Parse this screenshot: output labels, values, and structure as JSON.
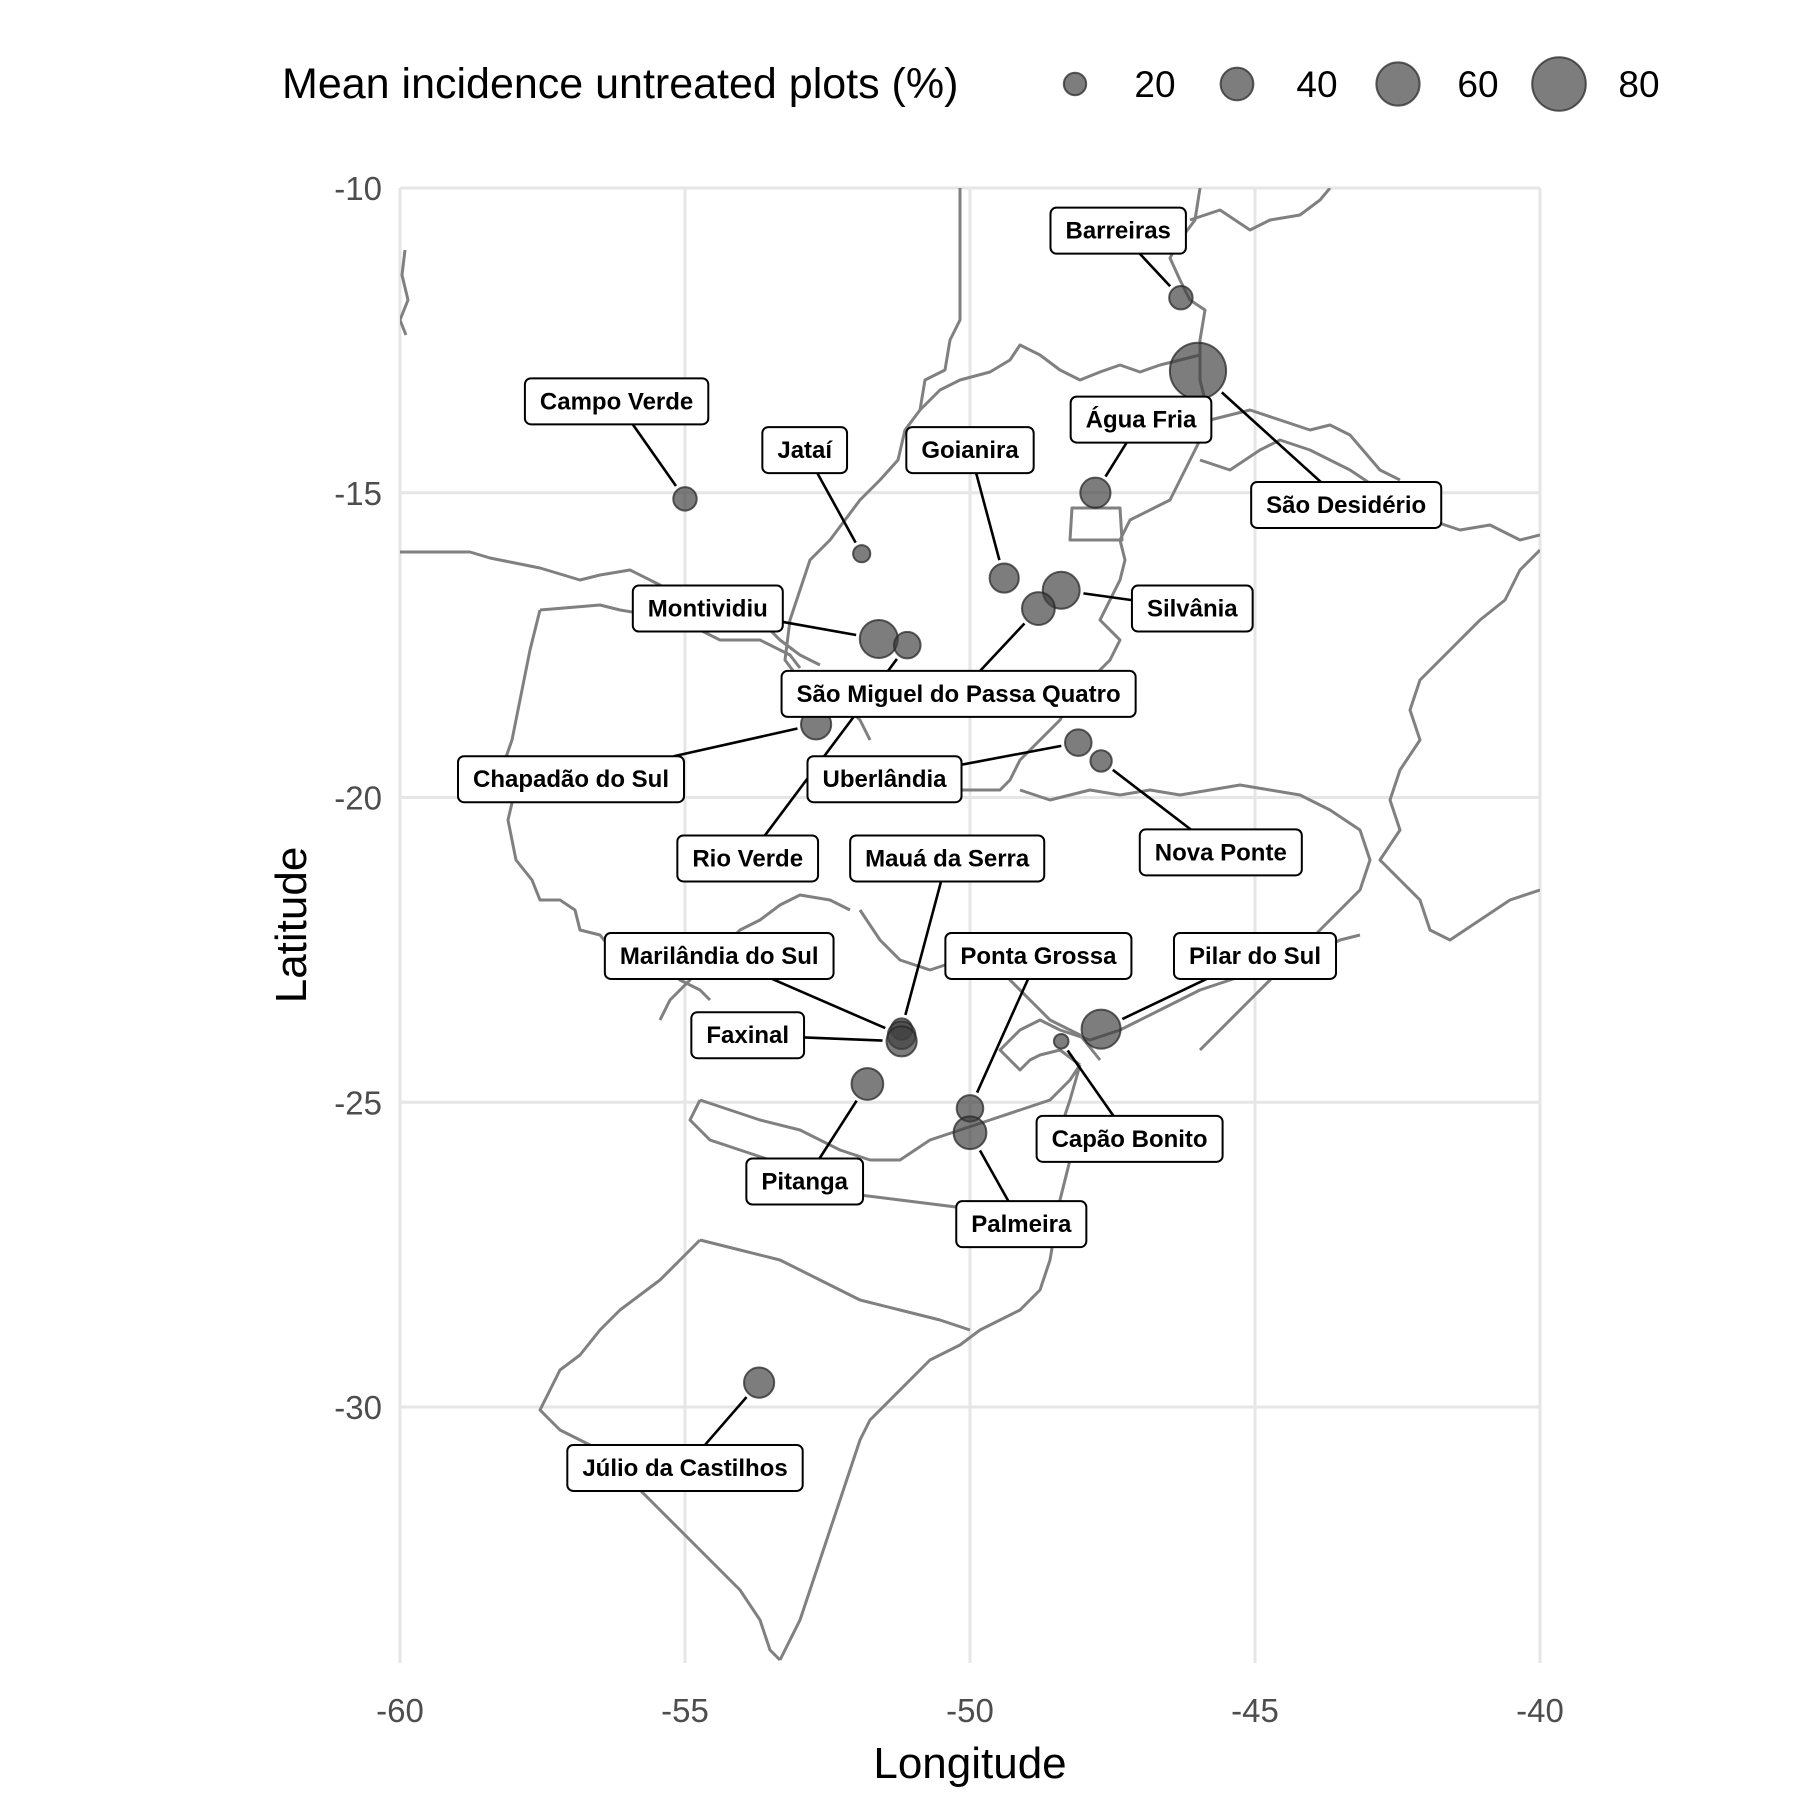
{
  "chart_data": {
    "type": "scatter",
    "xlabel": "Longitude",
    "ylabel": "Latitude",
    "xlim": [
      -60,
      -40
    ],
    "ylim": [
      -34.2,
      -10
    ],
    "x_ticks": [
      "-60",
      "-55",
      "-50",
      "-45",
      "-40"
    ],
    "y_ticks": [
      "-10",
      "-15",
      "-20",
      "-25",
      "-30"
    ],
    "grid": true,
    "legend": {
      "title": "Mean incidence untreated plots (%)",
      "placement": "top",
      "entries": [
        {
          "label": "20",
          "value": 20
        },
        {
          "label": "40",
          "value": 40
        },
        {
          "label": "60",
          "value": 60
        },
        {
          "label": "80",
          "value": 80
        }
      ]
    },
    "point_color": "#404040",
    "locations": [
      {
        "name": "Barreiras",
        "lon": -46.3,
        "lat": -11.8,
        "incidence": 22,
        "label_lon": -47.4,
        "label_lat": -10.7
      },
      {
        "name": "São Desidério",
        "lon": -46.0,
        "lat": -13.0,
        "incidence": 85,
        "label_lon": -43.4,
        "label_lat": -15.2
      },
      {
        "name": "Água Fria",
        "lon": -47.8,
        "lat": -15.0,
        "incidence": 35,
        "label_lon": -47.0,
        "label_lat": -13.8
      },
      {
        "name": "Campo Verde",
        "lon": -55.0,
        "lat": -15.1,
        "incidence": 22,
        "label_lon": -56.2,
        "label_lat": -13.5
      },
      {
        "name": "Jataí",
        "lon": -51.9,
        "lat": -16.0,
        "incidence": 10,
        "label_lon": -52.9,
        "label_lat": -14.3
      },
      {
        "name": "Goianira",
        "lon": -49.4,
        "lat": -16.4,
        "incidence": 33,
        "label_lon": -50.0,
        "label_lat": -14.3
      },
      {
        "name": "Silvânia",
        "lon": -48.4,
        "lat": -16.6,
        "incidence": 48,
        "label_lon": -46.1,
        "label_lat": -16.9
      },
      {
        "name": "Montividiu",
        "lon": -51.6,
        "lat": -17.4,
        "incidence": 50,
        "label_lon": -54.6,
        "label_lat": -16.9
      },
      {
        "name": "Rio Verde",
        "lon": -51.1,
        "lat": -17.5,
        "incidence": 28,
        "label_lon": -53.9,
        "label_lat": -21.0
      },
      {
        "name": "São Miguel do Passa Quatro",
        "lon": -48.8,
        "lat": -16.9,
        "incidence": 40,
        "label_lon": -50.2,
        "label_lat": -18.3
      },
      {
        "name": "Chapadão do Sul",
        "lon": -52.7,
        "lat": -18.8,
        "incidence": 35,
        "label_lon": -57.0,
        "label_lat": -19.7
      },
      {
        "name": "Uberlândia",
        "lon": -48.1,
        "lat": -19.1,
        "incidence": 28,
        "label_lon": -51.5,
        "label_lat": -19.7
      },
      {
        "name": "Nova Ponte",
        "lon": -47.7,
        "lat": -19.4,
        "incidence": 18,
        "label_lon": -45.6,
        "label_lat": -20.9
      },
      {
        "name": "Mauá da Serra",
        "lon": -51.2,
        "lat": -23.8,
        "incidence": 18,
        "label_lon": -50.4,
        "label_lat": -21.0
      },
      {
        "name": "Marilândia do Sul",
        "lon": -51.2,
        "lat": -23.9,
        "incidence": 30,
        "label_lon": -54.4,
        "label_lat": -22.6
      },
      {
        "name": "Faxinal",
        "lon": -51.2,
        "lat": -24.0,
        "incidence": 35,
        "label_lon": -53.9,
        "label_lat": -23.9
      },
      {
        "name": "Ponta Grossa",
        "lon": -50.0,
        "lat": -25.1,
        "incidence": 28,
        "label_lon": -48.8,
        "label_lat": -22.6
      },
      {
        "name": "Pilar do Sul",
        "lon": -47.7,
        "lat": -23.8,
        "incidence": 52,
        "label_lon": -45.0,
        "label_lat": -22.6
      },
      {
        "name": "Capão Bonito",
        "lon": -48.4,
        "lat": -24.0,
        "incidence": 5,
        "label_lon": -47.2,
        "label_lat": -25.6
      },
      {
        "name": "Pitanga",
        "lon": -51.8,
        "lat": -24.7,
        "incidence": 38,
        "label_lon": -52.9,
        "label_lat": -26.3
      },
      {
        "name": "Palmeira",
        "lon": -50.0,
        "lat": -25.5,
        "incidence": 40,
        "label_lon": -49.1,
        "label_lat": -27.0
      },
      {
        "name": "Júlio da Castilhos",
        "lon": -53.7,
        "lat": -29.6,
        "incidence": 35,
        "label_lon": -55.0,
        "label_lat": -31.0
      }
    ]
  }
}
